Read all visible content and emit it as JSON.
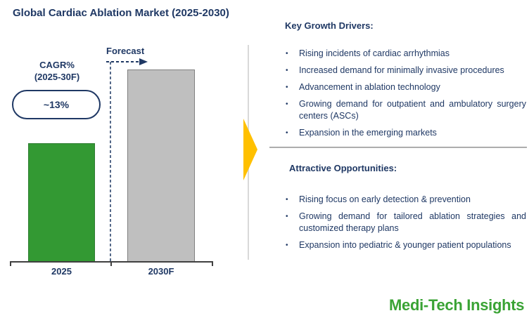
{
  "slide": {
    "title": "Global Cardiac Ablation Market (2025-2030)"
  },
  "chart_data": {
    "type": "bar",
    "title": "Global Cardiac Ablation Market (2025-2030)",
    "categories": [
      "2025",
      "2030F"
    ],
    "values": [
      100,
      162
    ],
    "values_note": "no numeric axis shown; bar heights are relative, 2030F is approx 1.62x the 2025 bar",
    "cagr_label": "CAGR% (2025-30F)",
    "cagr_value": "~13%",
    "forecast_label": "Forecast",
    "bar_colors": [
      "#339933",
      "#BFBFBF"
    ],
    "xlabel": "",
    "ylabel": "",
    "grid": false,
    "legend": false
  },
  "chart": {
    "cagr_line1": "CAGR%",
    "cagr_line2": "(2025-30F)",
    "cagr_value": "~13%",
    "forecast_label": "Forecast",
    "x_labels": [
      "2025",
      "2030F"
    ]
  },
  "drivers": {
    "heading": "Key Growth Drivers:",
    "items": [
      "Rising incidents of cardiac arrhythmias",
      "Increased demand for minimally invasive procedures",
      "Advancement in ablation technology",
      "Growing demand for outpatient and ambulatory surgery centers (ASCs)",
      "Expansion in the emerging markets"
    ]
  },
  "opportunities": {
    "heading": "Attractive Opportunities:",
    "items": [
      "Rising focus on early detection & prevention",
      "Growing demand for tailored ablation strategies and customized therapy plans",
      "Expansion into pediatric & younger patient populations"
    ]
  },
  "branding": {
    "logo_text": "Medi-Tech Insights"
  },
  "colors": {
    "navy_text": "#1F3864",
    "bar_2025_green": "#339933",
    "bar_2030_gray": "#BFBFBF",
    "accent_arrow_yellow": "#FFC000",
    "logo_green": "#3AA335",
    "divider_gray": "#A6A6A6",
    "separator_light_gray": "#D9D9D9",
    "axis_gray": "#404040"
  }
}
